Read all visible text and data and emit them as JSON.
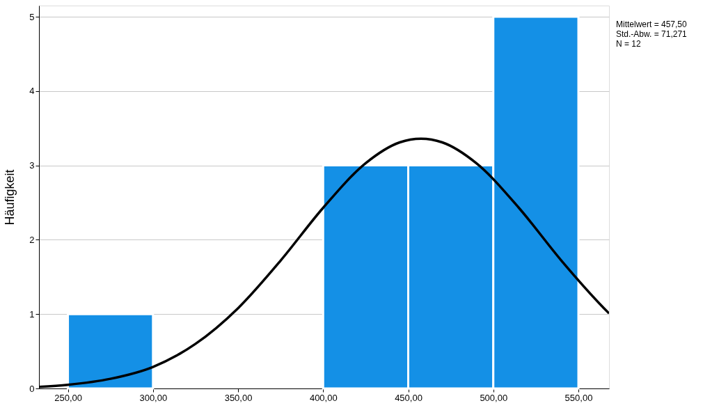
{
  "chart_data": {
    "type": "histogram",
    "ylabel": "Häufigkeit",
    "bins": [
      250,
      300,
      350,
      400,
      450,
      500,
      550
    ],
    "values": [
      1,
      0,
      0,
      3,
      3,
      5
    ],
    "color": "#1490e6",
    "series": [
      {
        "type": "line",
        "color": "#000000",
        "x": [
          233,
          250,
          275,
          300,
          325,
          350,
          375,
          400,
          425,
          445,
          457.5,
          470,
          490,
          515,
          540,
          565,
          568
        ],
        "values": [
          0.02,
          0.05,
          0.13,
          0.29,
          0.6,
          1.08,
          1.72,
          2.43,
          3.03,
          3.31,
          3.36,
          3.31,
          3.03,
          2.43,
          1.72,
          1.08,
          1.01
        ]
      }
    ],
    "xlim": [
      233,
      568
    ],
    "xticks": [
      {
        "value": 250,
        "label": "250,00"
      },
      {
        "value": 300,
        "label": "300,00"
      },
      {
        "value": 350,
        "label": "350,00"
      },
      {
        "value": 400,
        "label": "400,00"
      },
      {
        "value": 450,
        "label": "450,00"
      },
      {
        "value": 500,
        "label": "500,00"
      },
      {
        "value": 550,
        "label": "550,00"
      }
    ],
    "ylim": [
      0,
      5.15
    ],
    "yticks": [
      0,
      1,
      2,
      3,
      4,
      5
    ],
    "grid": "y",
    "annotations": [
      "Mittelwert = 457,50",
      "Std.-Abw. = 71,271",
      "N = 12"
    ]
  }
}
